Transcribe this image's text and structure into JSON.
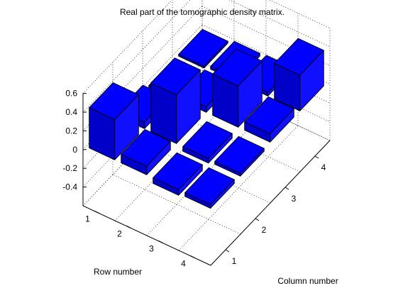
{
  "chart_data": {
    "type": "bar3",
    "title": "Real part of the tomographic density matrix.",
    "xlabel": "Column number",
    "ylabel": "Row number",
    "zlabel": "",
    "x_ticks": [
      "1",
      "2",
      "3",
      "4"
    ],
    "y_ticks": [
      "1",
      "2",
      "3",
      "4"
    ],
    "z_ticks": [
      "0.6",
      "0.4",
      "0.2",
      "0",
      "-0.2",
      "-0.4"
    ],
    "zlim": [
      -0.6,
      0.6
    ],
    "grid": true,
    "bar_color": "#0000FF",
    "matrix": [
      [
        0.43,
        0.07,
        -0.05,
        -0.02
      ],
      [
        0.09,
        0.52,
        0.06,
        0.03
      ],
      [
        -0.06,
        -0.05,
        0.44,
        0.04
      ],
      [
        -0.04,
        -0.03,
        0.09,
        0.38
      ]
    ],
    "rows": [
      "1",
      "2",
      "3",
      "4"
    ],
    "columns": [
      "1",
      "2",
      "3",
      "4"
    ]
  }
}
